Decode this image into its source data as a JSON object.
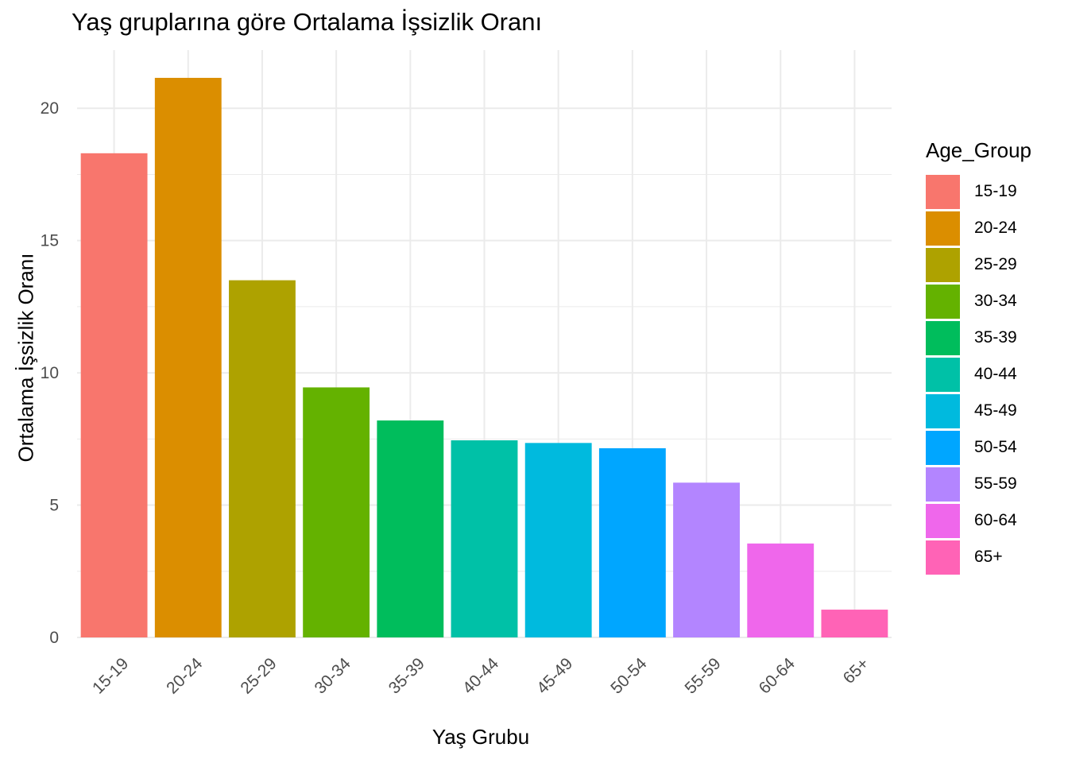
{
  "chart_data": {
    "type": "bar",
    "title": "Yaş gruplarına göre Ortalama İşsizlik Oranı",
    "xlabel": "Yaş Grubu",
    "ylabel": "Ortalama İşsizlik Oranı",
    "categories": [
      "15-19",
      "20-24",
      "25-29",
      "30-34",
      "35-39",
      "40-44",
      "45-49",
      "50-54",
      "55-59",
      "60-64",
      "65+"
    ],
    "values": [
      18.3,
      21.15,
      13.5,
      9.45,
      8.2,
      7.45,
      7.35,
      7.15,
      5.85,
      3.55,
      1.05
    ],
    "colors": [
      "#F8766D",
      "#DB8E00",
      "#AEA200",
      "#64B200",
      "#00BD5C",
      "#00C1A7",
      "#00BADE",
      "#00A6FF",
      "#B385FF",
      "#EF67EB",
      "#FF63B6"
    ],
    "ylim": [
      0,
      22.2
    ],
    "yticks": [
      0,
      5,
      10,
      15,
      20
    ],
    "grid": true,
    "legend": {
      "title": "Age_Group",
      "position": "right"
    }
  }
}
